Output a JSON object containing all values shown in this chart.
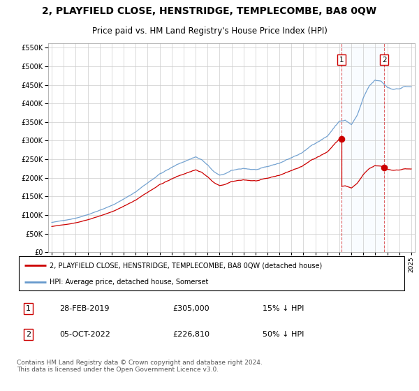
{
  "title": "2, PLAYFIELD CLOSE, HENSTRIDGE, TEMPLECOMBE, BA8 0QW",
  "subtitle": "Price paid vs. HM Land Registry's House Price Index (HPI)",
  "hpi_label": "HPI: Average price, detached house, Somerset",
  "property_label": "2, PLAYFIELD CLOSE, HENSTRIDGE, TEMPLECOMBE, BA8 0QW (detached house)",
  "hpi_color": "#6699cc",
  "property_color": "#cc0000",
  "point1": {
    "date": "28-FEB-2019",
    "value": 305000,
    "x": 2019.167,
    "note": "15% ↓ HPI"
  },
  "point2": {
    "date": "05-OCT-2022",
    "value": 226810,
    "x": 2022.75,
    "note": "50% ↓ HPI"
  },
  "footer": "Contains HM Land Registry data © Crown copyright and database right 2024.\nThis data is licensed under the Open Government Licence v3.0.",
  "ylim": [
    0,
    562500
  ],
  "yticks": [
    0,
    50000,
    100000,
    150000,
    200000,
    250000,
    300000,
    350000,
    400000,
    450000,
    500000,
    550000
  ],
  "xlim": [
    1994.7,
    2025.3
  ],
  "background": "#ffffff",
  "grid_color": "#cccccc",
  "shade_color": "#ddeeff",
  "seed": 42
}
